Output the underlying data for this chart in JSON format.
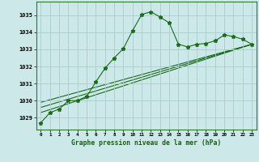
{
  "title": "Graphe pression niveau de la mer (hPa)",
  "background_color": "#cce8e8",
  "grid_color": "#aacccc",
  "line_color": "#1a6b1a",
  "xlim": [
    -0.5,
    23.5
  ],
  "ylim": [
    1028.3,
    1035.8
  ],
  "yticks": [
    1029,
    1030,
    1031,
    1032,
    1033,
    1034,
    1035
  ],
  "xtick_labels": [
    "0",
    "1",
    "2",
    "3",
    "4",
    "5",
    "6",
    "7",
    "8",
    "9",
    "10",
    "11",
    "12",
    "13",
    "14",
    "15",
    "16",
    "17",
    "18",
    "19",
    "20",
    "21",
    "22",
    "23"
  ],
  "main_series": {
    "x": [
      0,
      1,
      2,
      3,
      4,
      5,
      6,
      7,
      8,
      9,
      10,
      11,
      12,
      13,
      14,
      15,
      16,
      17,
      18,
      19,
      20,
      21,
      22,
      23
    ],
    "y": [
      1028.7,
      1029.3,
      1029.5,
      1030.0,
      1030.0,
      1030.25,
      1031.1,
      1031.9,
      1032.5,
      1033.05,
      1034.1,
      1035.05,
      1035.2,
      1034.9,
      1034.55,
      1033.3,
      1033.15,
      1033.3,
      1033.35,
      1033.5,
      1033.85,
      1033.75,
      1033.6,
      1033.3
    ]
  },
  "trend_lines": [
    {
      "x0": 0,
      "y0": 1029.3,
      "x1": 23,
      "y1": 1033.3
    },
    {
      "x0": 0,
      "y0": 1029.6,
      "x1": 23,
      "y1": 1033.3
    },
    {
      "x0": 0,
      "y0": 1029.9,
      "x1": 23,
      "y1": 1033.3
    }
  ]
}
